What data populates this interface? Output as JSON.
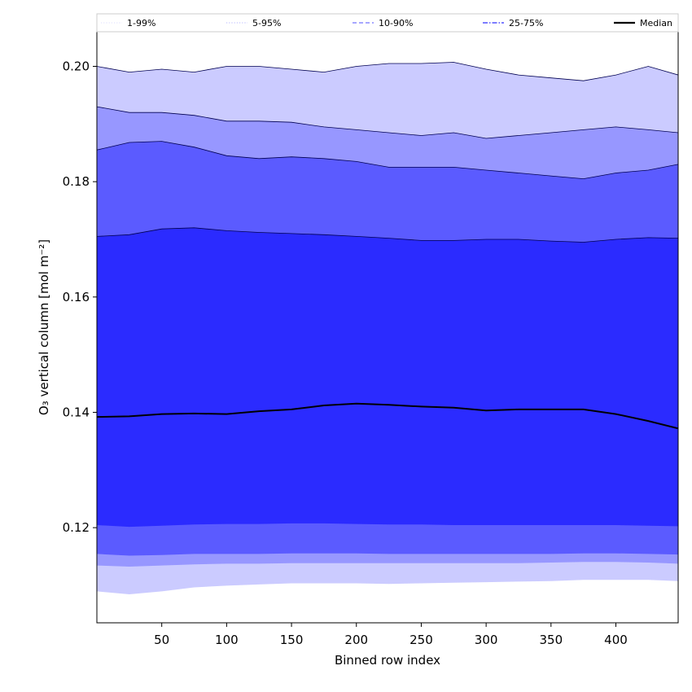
{
  "chart_data": {
    "type": "area",
    "title": "",
    "xlabel": "Binned row index",
    "ylabel": "O₃ vertical column [mol m⁻²]",
    "xlim": [
      0,
      448
    ],
    "ylim": [
      0.1035,
      0.206
    ],
    "xticks": [
      50,
      100,
      150,
      200,
      250,
      300,
      350,
      400
    ],
    "yticks": [
      0.12,
      0.14,
      0.16,
      0.18,
      0.2
    ],
    "ytick_labels": [
      "0.12",
      "0.14",
      "0.16",
      "0.18",
      "0.20"
    ],
    "grid": false,
    "legend_position": "top",
    "legend": [
      "1-99%",
      "5-95%",
      "10-90%",
      "25-75%",
      "Median"
    ],
    "x": [
      0,
      25,
      50,
      75,
      100,
      125,
      150,
      175,
      200,
      225,
      250,
      275,
      300,
      325,
      350,
      375,
      400,
      425,
      448
    ],
    "bands": [
      {
        "name": "1-99%",
        "color": "#cbcbff",
        "lower": [
          0.109,
          0.1085,
          0.109,
          0.1097,
          0.11,
          0.1102,
          0.1104,
          0.1104,
          0.1104,
          0.1103,
          0.1104,
          0.1105,
          0.1106,
          0.1107,
          0.1108,
          0.111,
          0.111,
          0.111,
          0.1108
        ],
        "upper": [
          0.2,
          0.199,
          0.1995,
          0.199,
          0.2,
          0.2,
          0.1995,
          0.199,
          0.2,
          0.2005,
          0.2005,
          0.2007,
          0.1995,
          0.1985,
          0.198,
          0.1975,
          0.1985,
          0.2,
          0.1985
        ]
      },
      {
        "name": "5-95%",
        "color": "#9797ff",
        "lower": [
          0.1135,
          0.1133,
          0.1135,
          0.1137,
          0.1138,
          0.1138,
          0.1139,
          0.1139,
          0.1139,
          0.1139,
          0.1139,
          0.1139,
          0.1139,
          0.1139,
          0.114,
          0.1141,
          0.1141,
          0.114,
          0.1138
        ],
        "upper": [
          0.193,
          0.192,
          0.192,
          0.1915,
          0.1905,
          0.1905,
          0.1903,
          0.1895,
          0.189,
          0.1885,
          0.188,
          0.1885,
          0.1875,
          0.188,
          0.1885,
          0.189,
          0.1895,
          0.189,
          0.1885
        ]
      },
      {
        "name": "10-90%",
        "color": "#5b5bff",
        "lower": [
          0.1155,
          0.1152,
          0.1153,
          0.1155,
          0.1155,
          0.1155,
          0.1156,
          0.1156,
          0.1156,
          0.1155,
          0.1155,
          0.1155,
          0.1155,
          0.1155,
          0.1155,
          0.1156,
          0.1156,
          0.1155,
          0.1154
        ],
        "upper": [
          0.1855,
          0.1868,
          0.187,
          0.186,
          0.1845,
          0.184,
          0.1843,
          0.184,
          0.1835,
          0.1825,
          0.1825,
          0.1825,
          0.182,
          0.1815,
          0.181,
          0.1805,
          0.1815,
          0.182,
          0.183
        ]
      },
      {
        "name": "25-75%",
        "color": "#2b2bff",
        "lower": [
          0.1205,
          0.1202,
          0.1204,
          0.1206,
          0.1207,
          0.1207,
          0.1208,
          0.1208,
          0.1207,
          0.1206,
          0.1206,
          0.1205,
          0.1205,
          0.1205,
          0.1205,
          0.1205,
          0.1205,
          0.1204,
          0.1203
        ],
        "upper": [
          0.1705,
          0.1708,
          0.1718,
          0.172,
          0.1715,
          0.1712,
          0.171,
          0.1708,
          0.1705,
          0.1702,
          0.1698,
          0.1698,
          0.17,
          0.17,
          0.1697,
          0.1695,
          0.17,
          0.1703,
          0.1702
        ]
      }
    ],
    "median": {
      "name": "Median",
      "color": "#000000",
      "values": [
        0.1392,
        0.1393,
        0.1397,
        0.1398,
        0.1397,
        0.1402,
        0.1405,
        0.1412,
        0.1415,
        0.1413,
        0.141,
        0.1408,
        0.1403,
        0.1405,
        0.1405,
        0.1405,
        0.1397,
        0.1385,
        0.1372
      ]
    },
    "legend_styles": [
      {
        "label": "1-99%",
        "color": "#dcdcff",
        "dash": "dotted",
        "width": 1
      },
      {
        "label": "5-95%",
        "color": "#b4b4ff",
        "dash": "dotted",
        "width": 1
      },
      {
        "label": "10-90%",
        "color": "#8a8aff",
        "dash": "dashed",
        "width": 1.4
      },
      {
        "label": "25-75%",
        "color": "#5050ff",
        "dash": "dashdot",
        "width": 1.6
      },
      {
        "label": "Median",
        "color": "#000000",
        "dash": "solid",
        "width": 2.2
      }
    ]
  }
}
